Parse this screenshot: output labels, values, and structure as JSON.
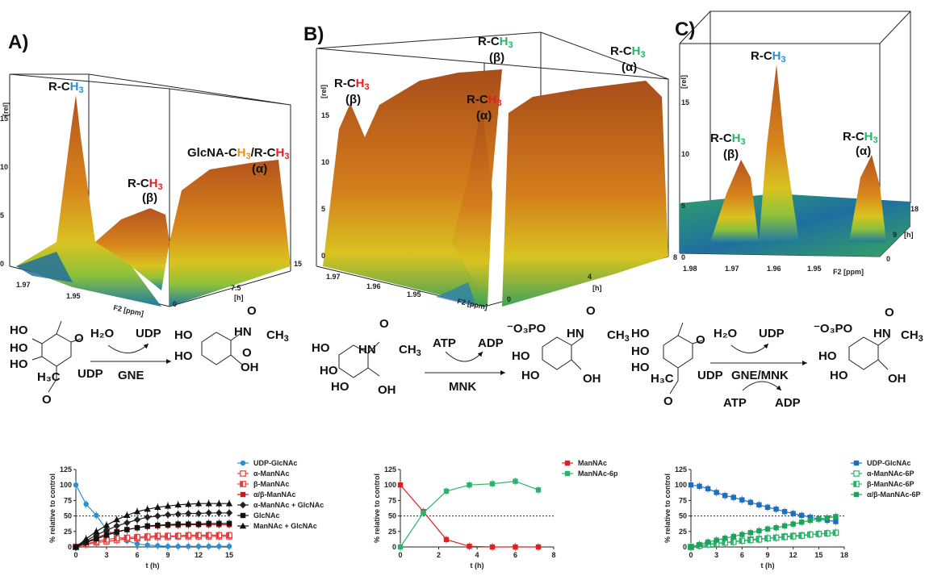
{
  "panels": [
    {
      "letter": "A)",
      "y_axis_label": "[rel]",
      "y_ticks": [
        "0",
        "5",
        "10",
        "15"
      ],
      "x_axis_label": "F2 [ppm]",
      "x_ticks": [
        "1.97",
        "1.95"
      ],
      "depth_axis_label": "[h]",
      "depth_ticks": [
        "0",
        "7.5",
        "15"
      ],
      "peaks": [
        {
          "l1": "R-C",
          "l2": "H",
          "l3": "3",
          "sub": ""
        },
        {
          "l1": "R-C",
          "l2": "H",
          "l3": "3",
          "sub": "(β)"
        },
        {
          "l1": "GlcNA-C",
          "l2": "H",
          "l3": "3",
          "l4": "/R-C",
          "l5": "H",
          "l6": "3",
          "sub": "(α)"
        }
      ]
    },
    {
      "letter": "B)",
      "y_axis_label": "[rel]",
      "y_ticks": [
        "0",
        "5",
        "10",
        "15"
      ],
      "x_axis_label": "F2 [ppm]",
      "x_ticks": [
        "1.97",
        "1.96",
        "1.95"
      ],
      "depth_axis_label": "[h]",
      "depth_ticks": [
        "0",
        "4",
        "8"
      ],
      "peaks": [
        {
          "l1": "R-C",
          "l2": "H",
          "l3": "3",
          "sub": "(β)"
        },
        {
          "l1": "R-C",
          "l2": "H",
          "l3": "3",
          "sub": "(β)"
        },
        {
          "l1": "R-C",
          "l2": "H",
          "l3": "3",
          "sub": "(α)"
        },
        {
          "l1": "R-C",
          "l2": "H",
          "l3": "3",
          "sub": "(α)"
        }
      ]
    },
    {
      "letter": "C)",
      "y_axis_label": "[rel]",
      "y_ticks": [
        "0",
        "5",
        "10",
        "15"
      ],
      "x_axis_label": "F2 [ppm]",
      "x_ticks": [
        "1.98",
        "1.97",
        "1.96",
        "1.95"
      ],
      "depth_axis_label": "[h]",
      "depth_ticks": [
        "0",
        "9",
        "18"
      ],
      "peaks": [
        {
          "l1": "R-C",
          "l2": "H",
          "l3": "3",
          "sub": ""
        },
        {
          "l1": "R-C",
          "l2": "H",
          "l3": "3",
          "sub": "(β)"
        },
        {
          "l1": "R-C",
          "l2": "H",
          "l3": "3",
          "sub": "(α)"
        }
      ]
    }
  ],
  "reactions": {
    "r1": {
      "water": "H₂O",
      "udp": "UDP",
      "enzyme": "GNE",
      "udp_sub": "UDP",
      "ho1": "HO",
      "ho2": "HO",
      "ho3": "HO",
      "h3c": "H₃C",
      "o1": "O",
      "o2": "O",
      "oh": "OH",
      "ho4": "HO",
      "ho5": "HO",
      "hn": "HN",
      "o3": "O",
      "ch3": "CH",
      "ch3sub": "3",
      "o4": "O"
    },
    "r2": {
      "atp": "ATP",
      "adp": "ADP",
      "enzyme": "MNK",
      "ho1": "HO",
      "ho2": "HO",
      "ho3": "HO",
      "hn": "HN",
      "o": "O",
      "ch3": "CH",
      "ch3sub": "3",
      "oh": "OH",
      "o3po": "⁻O₃PO",
      "ho4": "HO",
      "ho5": "HO",
      "hn2": "HN",
      "o2": "O",
      "ch3b": "CH",
      "ch3bsub": "3",
      "oh2": "OH"
    },
    "r3": {
      "water": "H₂O",
      "udp": "UDP",
      "enzyme": "GNE/MNK",
      "atp": "ATP",
      "adp": "ADP",
      "ho1": "HO",
      "ho2": "HO",
      "ho3": "HO",
      "h3c": "H₃C",
      "o1": "O",
      "o2": "O",
      "udp_sub": "UDP",
      "o3po": "⁻O₃PO",
      "ho4": "HO",
      "ho5": "HO",
      "hn": "HN",
      "o3": "O",
      "ch3": "CH",
      "ch3sub": "3",
      "oh": "OH"
    }
  },
  "chart_data": [
    {
      "type": "line",
      "xlabel": "t (h)",
      "ylabel": "% relative to control",
      "xlim": [
        0,
        15
      ],
      "ylim": [
        0,
        125
      ],
      "xticks": [
        0,
        3,
        6,
        9,
        12,
        15
      ],
      "yticks": [
        0,
        25,
        50,
        75,
        100,
        125
      ],
      "reference_line": 50,
      "series": [
        {
          "name": "UDP-GlcNAc",
          "color": "#2b8fd4",
          "marker": "circle",
          "x": [
            0,
            1,
            2,
            3,
            4,
            5,
            6,
            7,
            8,
            9,
            10,
            11,
            12,
            13,
            14,
            15
          ],
          "y": [
            100,
            69,
            51,
            28,
            17,
            10,
            5,
            3,
            2,
            1,
            1,
            1,
            1,
            1,
            1,
            1
          ]
        },
        {
          "name": "α-ManNAc",
          "color": "#e23c3c",
          "marker": "square-open",
          "x": [
            0,
            1,
            2,
            3,
            4,
            5,
            6,
            7,
            8,
            9,
            10,
            11,
            12,
            13,
            14,
            15
          ],
          "y": [
            0,
            4,
            7,
            9,
            11,
            13,
            14,
            15,
            16,
            16,
            17,
            17,
            17,
            17,
            17,
            17
          ]
        },
        {
          "name": "β-ManNAc",
          "color": "#e23c3c",
          "marker": "square-half",
          "x": [
            0,
            1,
            2,
            3,
            4,
            5,
            6,
            7,
            8,
            9,
            10,
            11,
            12,
            13,
            14,
            15
          ],
          "y": [
            0,
            5,
            9,
            12,
            14,
            15,
            16,
            17,
            18,
            18,
            18,
            19,
            19,
            19,
            19,
            19
          ]
        },
        {
          "name": "α/β-ManNAc",
          "color": "#c41a1a",
          "marker": "square",
          "x": [
            0,
            1,
            2,
            3,
            4,
            5,
            6,
            7,
            8,
            9,
            10,
            11,
            12,
            13,
            14,
            15
          ],
          "y": [
            0,
            8,
            15,
            21,
            25,
            28,
            31,
            33,
            34,
            35,
            35,
            36,
            36,
            36,
            36,
            36
          ]
        },
        {
          "name": "α-ManNAc + GlcNAc",
          "color": "#222222",
          "marker": "diamond",
          "x": [
            0,
            1,
            2,
            3,
            4,
            5,
            6,
            7,
            8,
            9,
            10,
            11,
            12,
            13,
            14,
            15
          ],
          "y": [
            0,
            10,
            19,
            27,
            34,
            39,
            44,
            48,
            50,
            52,
            53,
            54,
            54,
            55,
            55,
            55
          ]
        },
        {
          "name": "GlcNAc",
          "color": "#111111",
          "marker": "square",
          "x": [
            0,
            1,
            2,
            3,
            4,
            5,
            6,
            7,
            8,
            9,
            10,
            11,
            12,
            13,
            14,
            15
          ],
          "y": [
            0,
            7,
            13,
            19,
            24,
            28,
            31,
            34,
            35,
            36,
            37,
            37,
            37,
            38,
            38,
            38
          ]
        },
        {
          "name": "ManNAc + GlcNAc",
          "color": "#111111",
          "marker": "triangle",
          "x": [
            0,
            1,
            2,
            3,
            4,
            5,
            6,
            7,
            8,
            9,
            10,
            11,
            12,
            13,
            14,
            15
          ],
          "y": [
            0,
            13,
            25,
            35,
            44,
            51,
            57,
            61,
            64,
            66,
            68,
            69,
            70,
            70,
            70,
            70
          ]
        }
      ]
    },
    {
      "type": "line",
      "xlabel": "t (h)",
      "ylabel": "% relative to control",
      "xlim": [
        0,
        8
      ],
      "ylim": [
        0,
        125
      ],
      "xticks": [
        0,
        2,
        4,
        6,
        8
      ],
      "yticks": [
        0,
        25,
        50,
        75,
        100,
        125
      ],
      "reference_line": 50,
      "series": [
        {
          "name": "ManNAc",
          "color": "#e02020",
          "marker": "square",
          "x": [
            0,
            1.2,
            2.4,
            3.6,
            4.8,
            6.0,
            7.2
          ],
          "y": [
            100,
            57,
            12,
            1,
            0,
            0,
            0
          ]
        },
        {
          "name": "ManNAc-6p",
          "color": "#2bb36a",
          "marker": "square",
          "x": [
            0,
            1.2,
            2.4,
            3.6,
            4.8,
            6.0,
            7.2
          ],
          "y": [
            0,
            55,
            90,
            100,
            102,
            106,
            92
          ]
        }
      ]
    },
    {
      "type": "line",
      "xlabel": "t (h)",
      "ylabel": "% relative to control",
      "xlim": [
        0,
        18
      ],
      "ylim": [
        0,
        125
      ],
      "xticks": [
        0,
        3,
        6,
        9,
        12,
        15,
        18
      ],
      "yticks": [
        0,
        25,
        50,
        75,
        100,
        125
      ],
      "reference_line": 50,
      "series": [
        {
          "name": "UDP-GlcNAc",
          "color": "#1f6fbf",
          "marker": "square",
          "x": [
            0,
            1,
            2,
            3,
            4,
            5,
            6,
            7,
            8,
            9,
            10,
            11,
            12,
            13,
            14,
            15,
            16,
            17
          ],
          "y": [
            100,
            98,
            94,
            88,
            83,
            80,
            76,
            72,
            68,
            64,
            61,
            57,
            54,
            51,
            48,
            45,
            43,
            41
          ]
        },
        {
          "name": "α-ManNAc-6P",
          "color": "#2bb36a",
          "marker": "square-open",
          "x": [
            0,
            1,
            2,
            3,
            4,
            5,
            6,
            7,
            8,
            9,
            10,
            11,
            12,
            13,
            14,
            15,
            16,
            17
          ],
          "y": [
            0,
            2,
            4,
            6,
            7,
            9,
            10,
            12,
            13,
            14,
            15,
            17,
            18,
            19,
            20,
            21,
            22,
            23
          ]
        },
        {
          "name": "β-ManNAc-6P",
          "color": "#2bb36a",
          "marker": "square-half",
          "x": [
            0,
            1,
            2,
            3,
            4,
            5,
            6,
            7,
            8,
            9,
            10,
            11,
            12,
            13,
            14,
            15,
            16,
            17
          ],
          "y": [
            0,
            2,
            4,
            5,
            7,
            8,
            10,
            11,
            12,
            14,
            15,
            16,
            17,
            18,
            20,
            21,
            22,
            23
          ]
        },
        {
          "name": "α/β-ManNAc-6P",
          "color": "#1ea35a",
          "marker": "square",
          "x": [
            0,
            1,
            2,
            3,
            4,
            5,
            6,
            7,
            8,
            9,
            10,
            11,
            12,
            13,
            14,
            15,
            16,
            17
          ],
          "y": [
            0,
            4,
            8,
            11,
            14,
            17,
            20,
            23,
            26,
            29,
            31,
            34,
            37,
            40,
            43,
            45,
            47,
            49
          ]
        }
      ]
    }
  ]
}
